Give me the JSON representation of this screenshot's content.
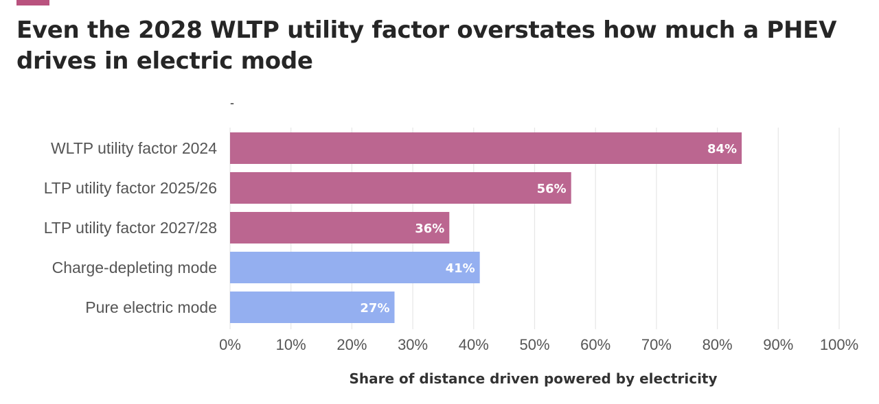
{
  "header": {
    "title": "Even the 2028 WLTP utility factor overstates how much a PHEV drives in electric mode",
    "accent_color": "#b9527e",
    "marker": "-"
  },
  "chart_data": {
    "type": "bar",
    "orientation": "horizontal",
    "title": "Even the 2028 WLTP utility factor overstates how much a PHEV drives in electric mode",
    "categories": [
      "WLTP utility factor 2024",
      "LTP utility factor 2025/26",
      "LTP utility factor 2027/28",
      "Charge-depleting mode",
      "Pure electric mode"
    ],
    "values": [
      84,
      56,
      36,
      41,
      27
    ],
    "value_labels": [
      "84%",
      "56%",
      "36%",
      "41%",
      "27%"
    ],
    "colors": [
      "#bb6690",
      "#bb6690",
      "#bb6690",
      "#94aff0",
      "#94aff0"
    ],
    "xlabel": "Share of distance driven powered by electricity",
    "ylabel": "",
    "xlim": [
      0,
      100
    ],
    "xticks": [
      0,
      10,
      20,
      30,
      40,
      50,
      60,
      70,
      80,
      90,
      100
    ],
    "xtick_labels": [
      "0%",
      "10%",
      "20%",
      "30%",
      "40%",
      "50%",
      "60%",
      "70%",
      "80%",
      "90%",
      "100%"
    ],
    "grid": true
  }
}
